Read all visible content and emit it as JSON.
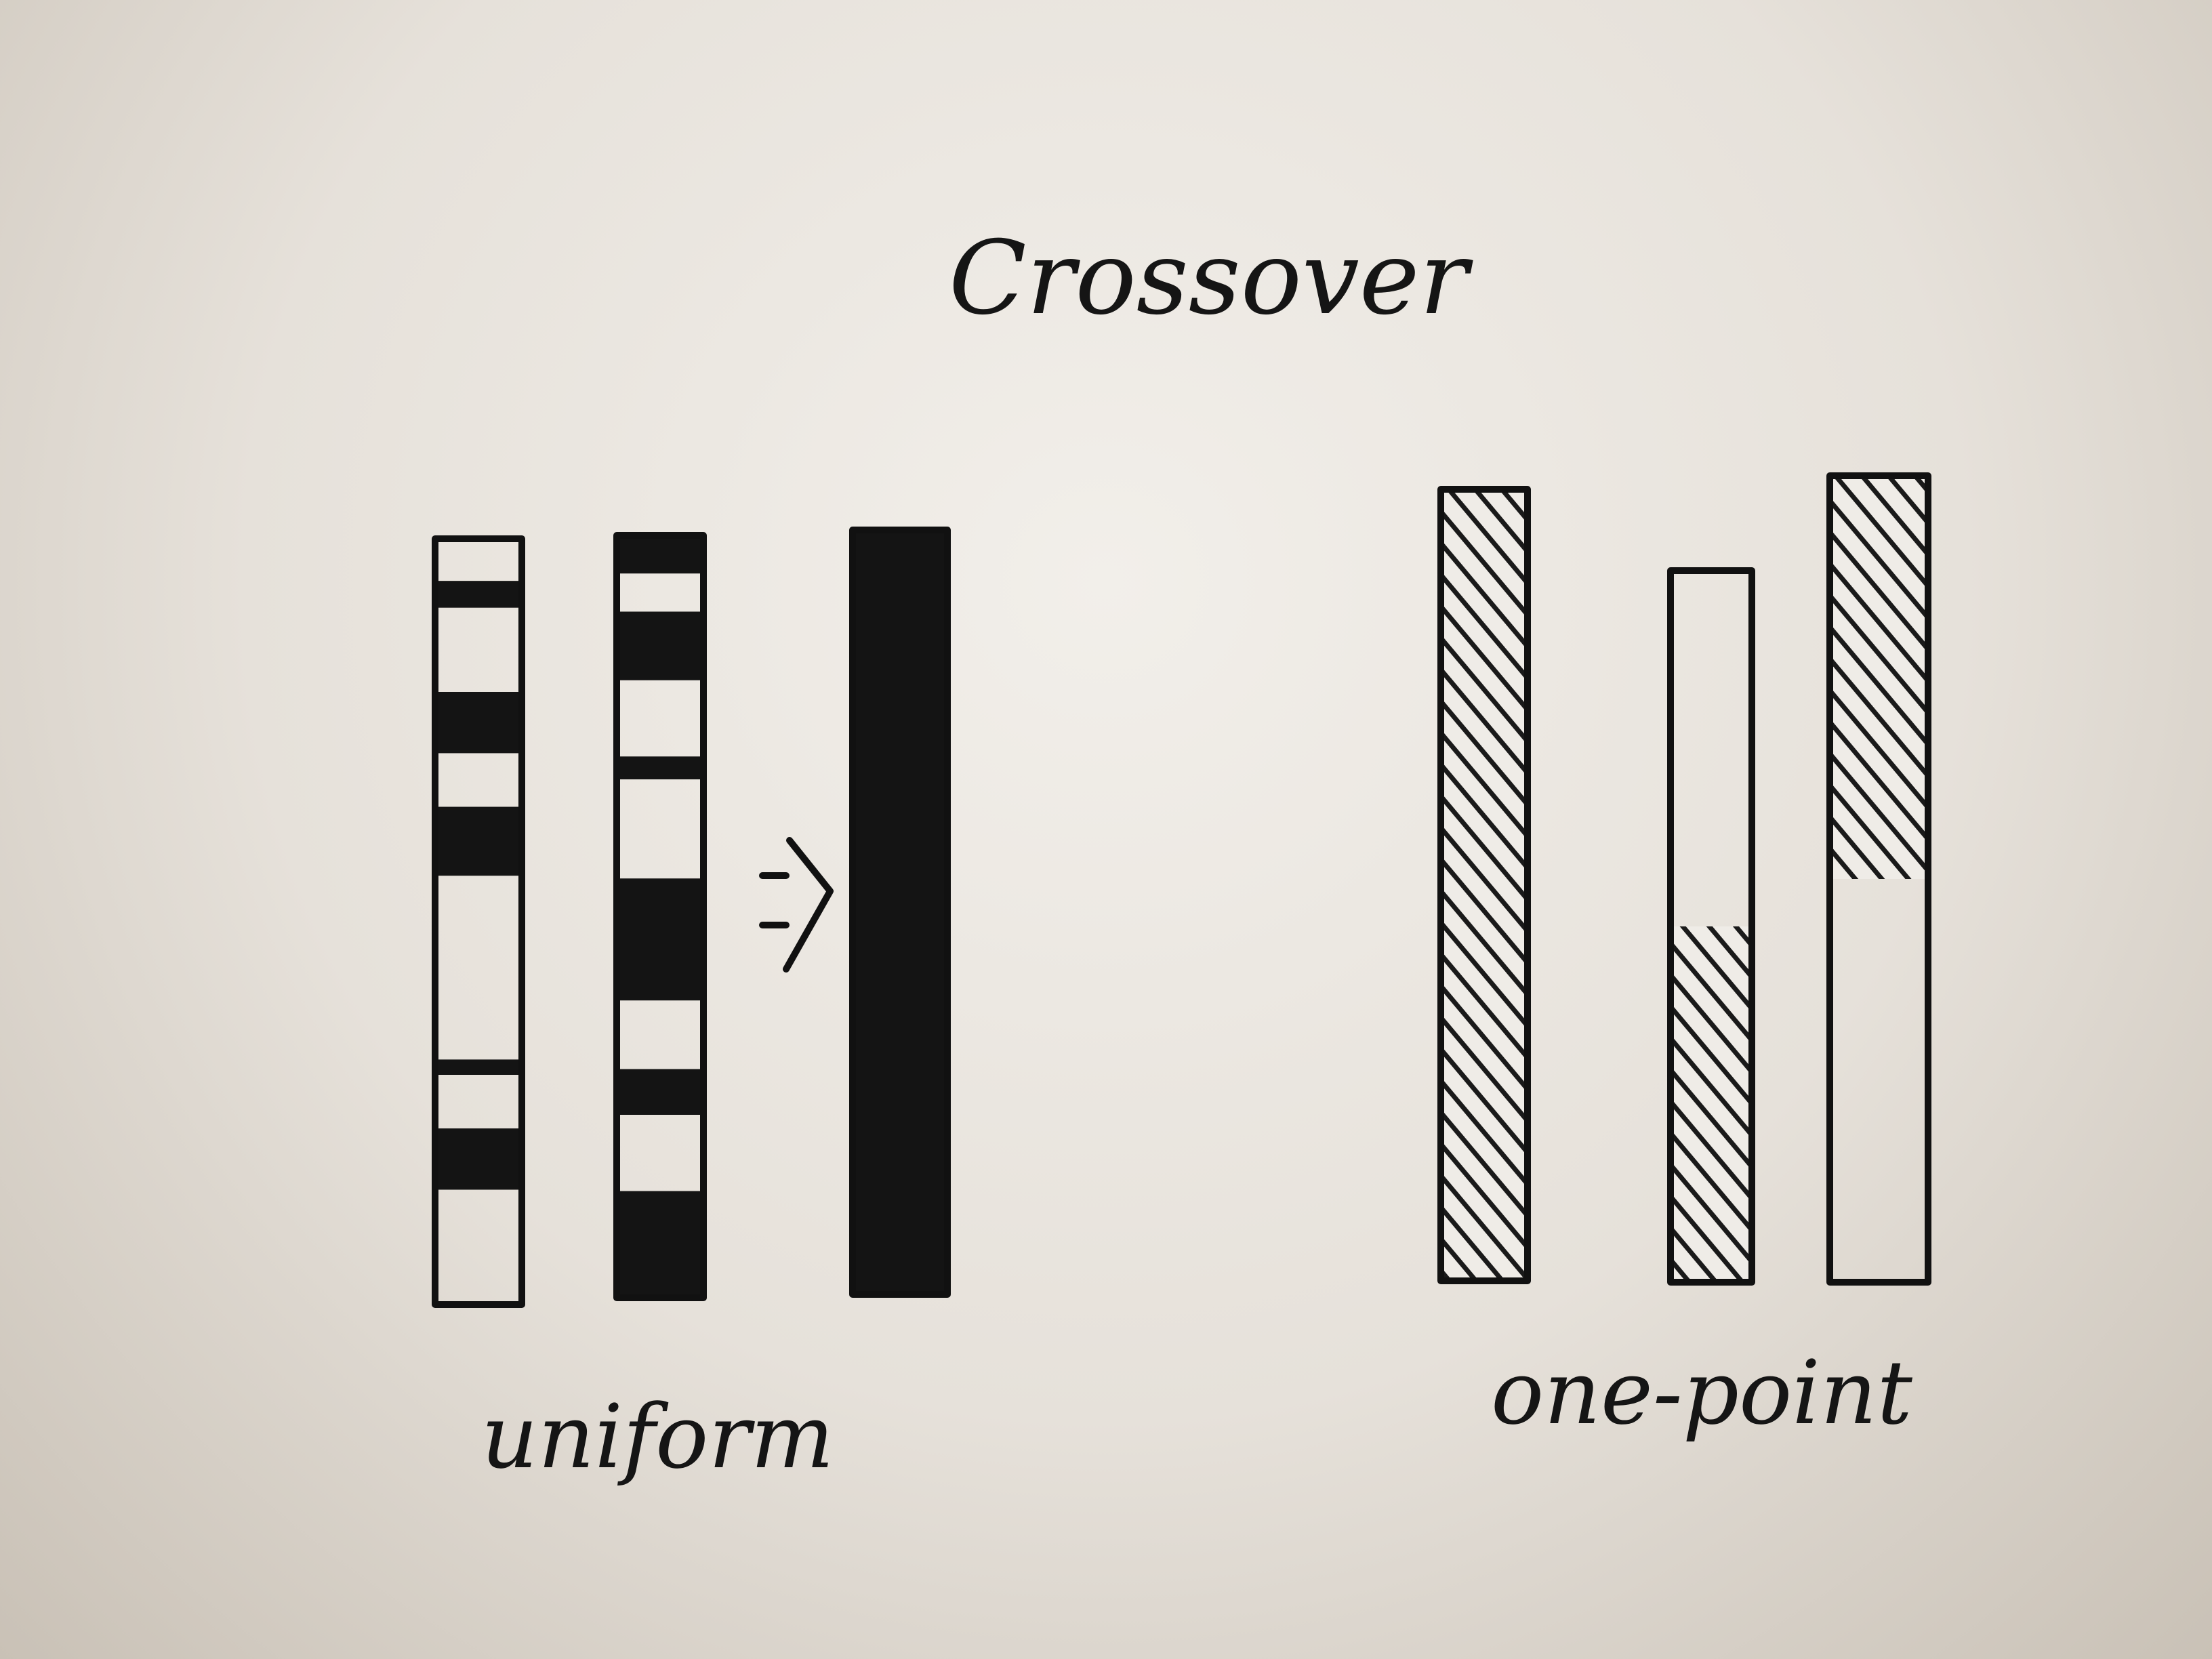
{
  "title": "Crossover",
  "uniform": {
    "label": "uniform",
    "parent_1_dark_segments": [
      [
        0.055,
        0.09
      ],
      [
        0.2,
        0.28
      ],
      [
        0.35,
        0.44
      ],
      [
        0.68,
        0.7
      ],
      [
        0.77,
        0.85
      ]
    ],
    "parent_2_dark_segments": [
      [
        0.0,
        0.05
      ],
      [
        0.1,
        0.19
      ],
      [
        0.29,
        0.32
      ],
      [
        0.45,
        0.61
      ],
      [
        0.7,
        0.76
      ],
      [
        0.86,
        1.0
      ]
    ],
    "child_dark_segments": [
      [
        0.0,
        1.0
      ]
    ]
  },
  "one_point": {
    "label": "one-point",
    "crossover_point": 0.5,
    "parent_1_hatched_segments": [
      [
        0.0,
        1.0
      ]
    ],
    "parent_2_hatched_segments": [
      [
        0.5,
        1.0
      ]
    ],
    "child_hatched_segments": [
      [
        0.0,
        0.5
      ]
    ]
  },
  "colors": {
    "ink": "#141414",
    "paper": "#eeeae4"
  },
  "icons": {
    "arrow": "double-arrow-icon"
  }
}
